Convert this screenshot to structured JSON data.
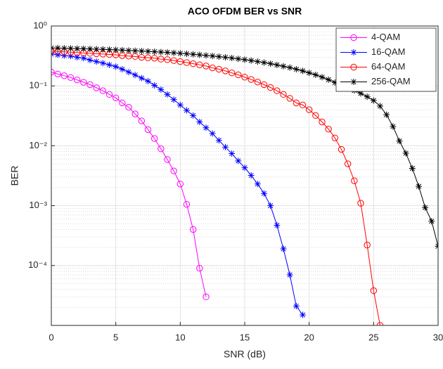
{
  "chart_data": {
    "type": "line",
    "title": "ACO OFDM BER vs SNR",
    "x_label": "SNR (dB)",
    "y_label": "BER",
    "y_scale": "log",
    "grid": true,
    "minor_grid": true,
    "legend_position": "northeast",
    "xlim": [
      0,
      30
    ],
    "xticks": [
      0,
      5,
      10,
      15,
      20,
      25,
      30
    ],
    "ylim": [
      1e-05,
      1
    ],
    "yticks": [
      {
        "value": 0.0001,
        "label": "10⁻⁴"
      },
      {
        "value": 0.001,
        "label": "10⁻³"
      },
      {
        "value": 0.01,
        "label": "10⁻²"
      },
      {
        "value": 0.1,
        "label": "10⁻¹"
      },
      {
        "value": 1,
        "label": "10⁰"
      }
    ],
    "x": [
      0,
      0.5,
      1,
      1.5,
      2,
      2.5,
      3,
      3.5,
      4,
      4.5,
      5,
      5.5,
      6,
      6.5,
      7,
      7.5,
      8,
      8.5,
      9,
      9.5,
      10,
      10.5,
      11,
      11.5,
      12,
      12.5,
      13,
      13.5,
      14,
      14.5,
      15,
      15.5,
      16,
      16.5,
      17,
      17.5,
      18,
      18.5,
      19,
      19.5,
      20,
      20.5,
      21,
      21.5,
      22,
      22.5,
      23,
      23.5,
      24,
      24.5,
      25,
      25.5,
      26,
      26.5,
      27,
      27.5,
      28,
      28.5,
      29,
      29.5,
      30
    ],
    "series": [
      {
        "name": "4-QAM",
        "color": "#ff00ff",
        "marker": "circle",
        "values": [
          0.17,
          0.158,
          0.148,
          0.138,
          0.126,
          0.115,
          0.105,
          0.093,
          0.083,
          0.072,
          0.063,
          0.052,
          0.044,
          0.034,
          0.026,
          0.0186,
          0.0132,
          0.0089,
          0.0059,
          0.0038,
          0.0023,
          0.00105,
          0.0004,
          9e-05,
          3e-05,
          null,
          null,
          null,
          null,
          null,
          null,
          null,
          null,
          null,
          null,
          null,
          null,
          null,
          null,
          null,
          null,
          null,
          null,
          null,
          null,
          null,
          null,
          null,
          null,
          null,
          null,
          null,
          null,
          null,
          null,
          null,
          null,
          null,
          null,
          null,
          null
        ]
      },
      {
        "name": "16-QAM",
        "color": "#0000ff",
        "marker": "star",
        "values": [
          0.34,
          0.33,
          0.32,
          0.315,
          0.3,
          0.29,
          0.27,
          0.255,
          0.24,
          0.225,
          0.21,
          0.19,
          0.17,
          0.152,
          0.135,
          0.12,
          0.102,
          0.087,
          0.072,
          0.059,
          0.048,
          0.039,
          0.032,
          0.025,
          0.02,
          0.016,
          0.0123,
          0.0095,
          0.0074,
          0.0056,
          0.0043,
          0.0032,
          0.0023,
          0.0016,
          0.001,
          0.00047,
          0.00019,
          7e-05,
          2.1e-05,
          1.5e-05,
          null,
          null,
          null,
          null,
          null,
          null,
          null,
          null,
          null,
          null,
          null,
          null,
          null,
          null,
          null,
          null,
          null,
          null,
          null,
          null,
          null
        ]
      },
      {
        "name": "64-QAM",
        "color": "#ff0000",
        "marker": "circle",
        "values": [
          0.38,
          0.375,
          0.37,
          0.365,
          0.36,
          0.355,
          0.35,
          0.345,
          0.34,
          0.335,
          0.33,
          0.32,
          0.315,
          0.31,
          0.3,
          0.295,
          0.29,
          0.28,
          0.275,
          0.265,
          0.255,
          0.245,
          0.235,
          0.225,
          0.215,
          0.2,
          0.19,
          0.178,
          0.165,
          0.153,
          0.14,
          0.128,
          0.116,
          0.105,
          0.094,
          0.083,
          0.072,
          0.062,
          0.052,
          0.048,
          0.04,
          0.032,
          0.025,
          0.019,
          0.0135,
          0.0087,
          0.005,
          0.0026,
          0.0011,
          0.00022,
          3.8e-05,
          1e-05,
          null,
          null,
          null,
          null,
          null,
          null,
          null,
          null,
          null
        ]
      },
      {
        "name": "256-QAM",
        "color": "#000000",
        "marker": "star",
        "values": [
          0.43,
          0.428,
          0.425,
          0.423,
          0.42,
          0.417,
          0.414,
          0.41,
          0.407,
          0.403,
          0.4,
          0.395,
          0.39,
          0.386,
          0.382,
          0.377,
          0.372,
          0.367,
          0.362,
          0.356,
          0.35,
          0.344,
          0.337,
          0.33,
          0.323,
          0.316,
          0.308,
          0.3,
          0.292,
          0.283,
          0.274,
          0.265,
          0.255,
          0.245,
          0.235,
          0.224,
          0.213,
          0.202,
          0.19,
          0.178,
          0.165,
          0.153,
          0.14,
          0.127,
          0.114,
          0.102,
          0.093,
          0.084,
          0.075,
          0.066,
          0.057,
          0.046,
          0.033,
          0.021,
          0.012,
          0.0075,
          0.0042,
          0.0021,
          0.00093,
          0.00055,
          0.00021
        ]
      }
    ]
  }
}
